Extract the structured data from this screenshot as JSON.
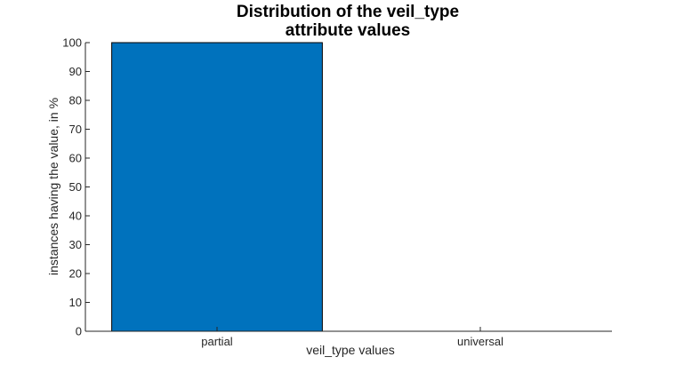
{
  "chart_data": {
    "type": "bar",
    "title": [
      "Distribution of the veil_type",
      "attribute values"
    ],
    "categories": [
      "partial",
      "universal"
    ],
    "values": [
      100,
      0
    ],
    "xlabel": "veil_type values",
    "ylabel": "instances having the value, in %",
    "ylim": [
      0,
      100
    ],
    "yticks": [
      0,
      10,
      20,
      30,
      40,
      50,
      60,
      70,
      80,
      90,
      100
    ],
    "grid": false,
    "bar_color": "#0072BD",
    "bar_edge_color": "#000000"
  }
}
